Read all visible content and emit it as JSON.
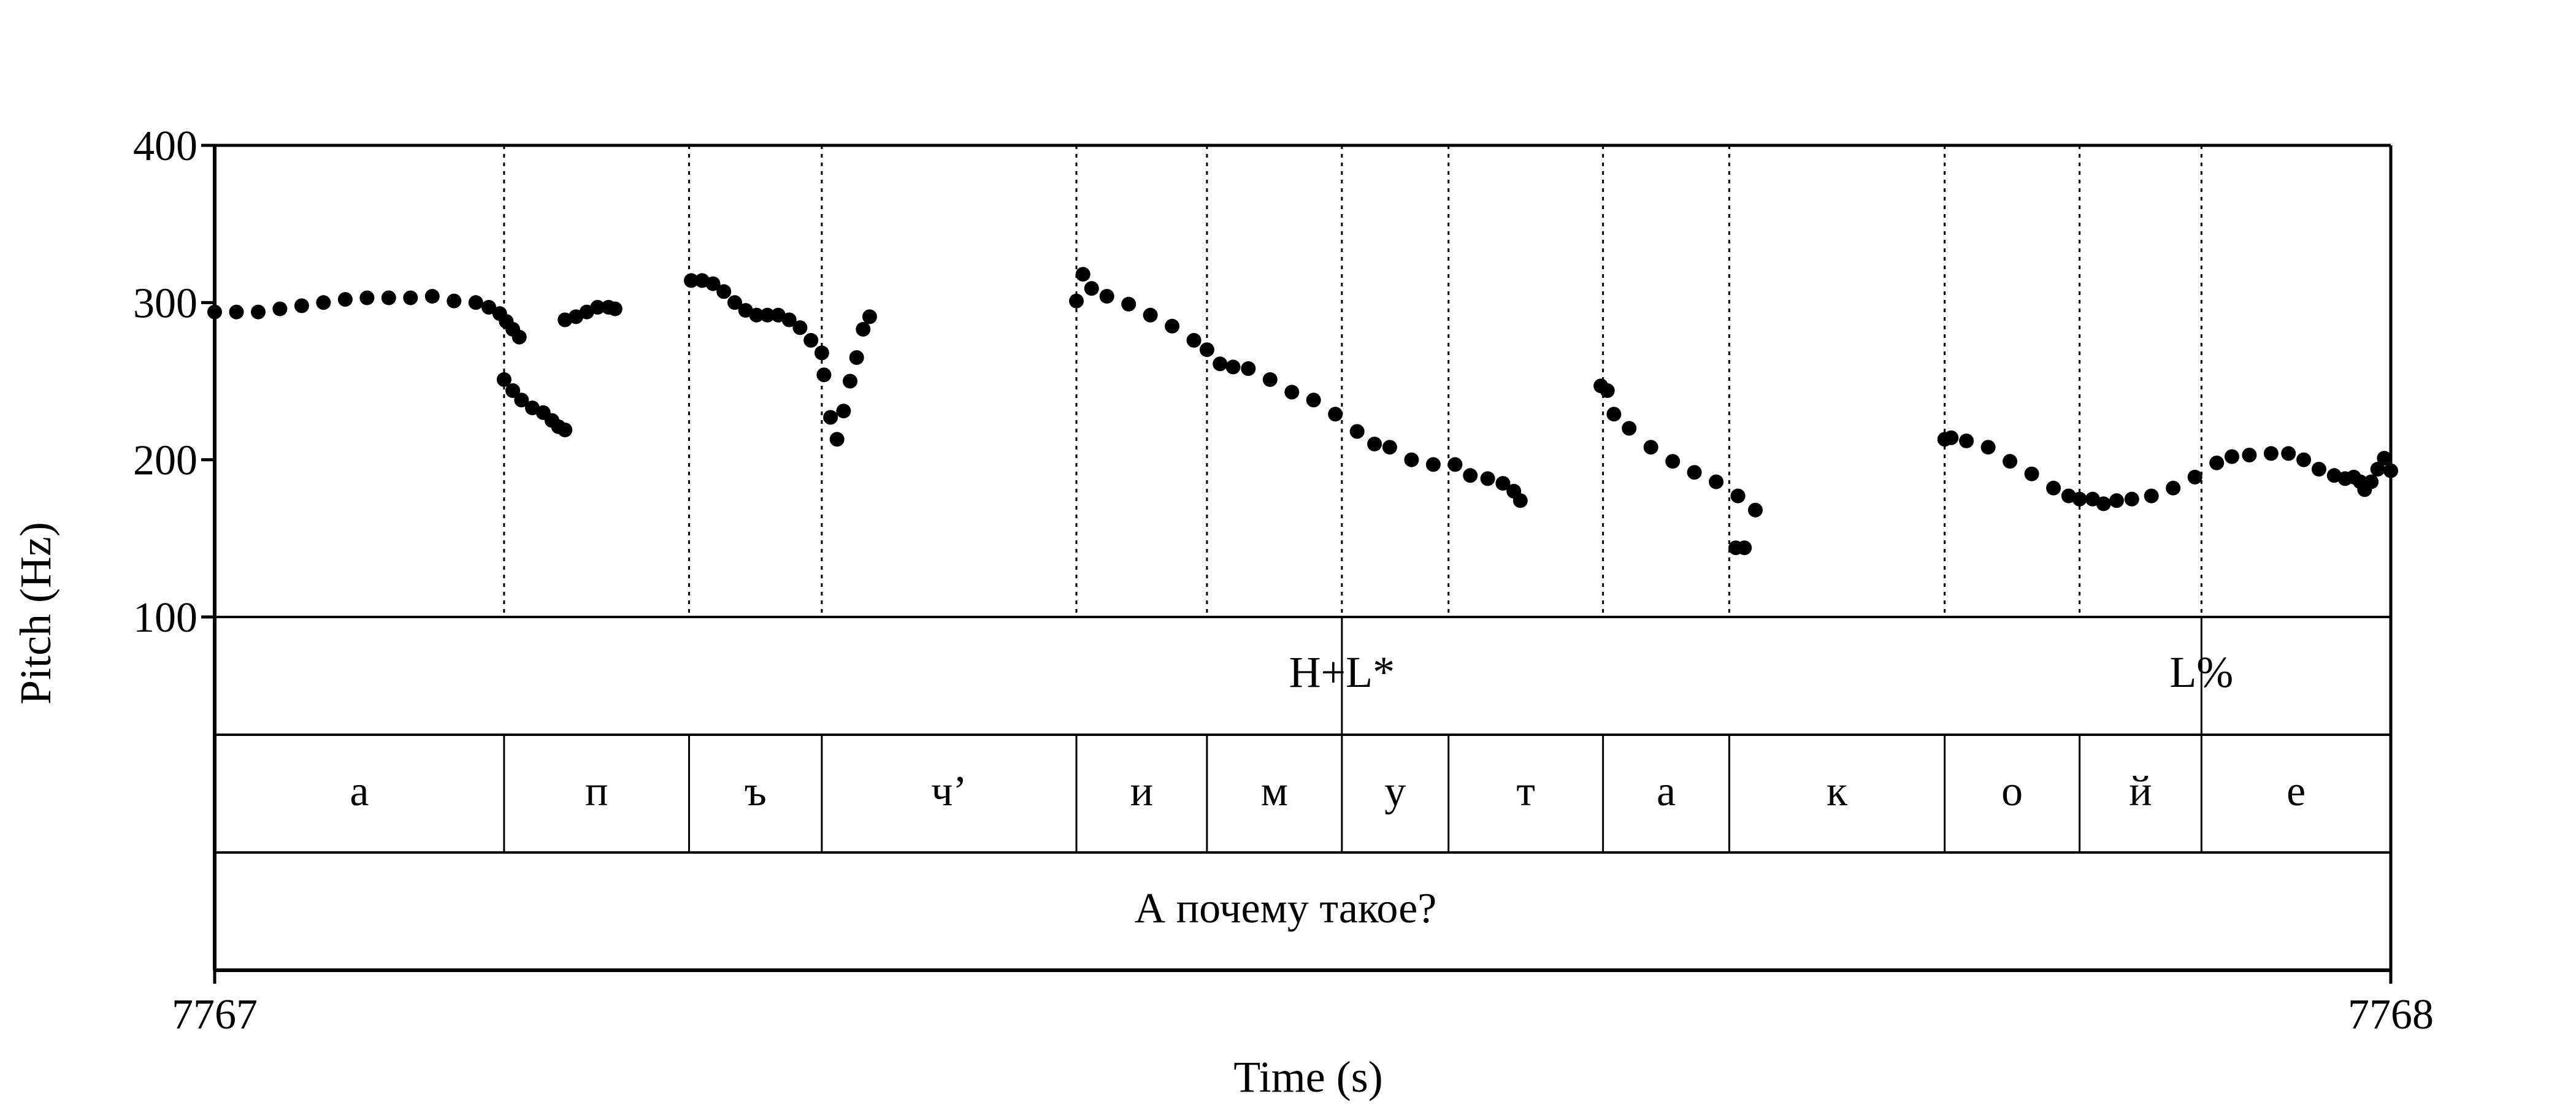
{
  "chart_data": {
    "type": "scatter",
    "title": "",
    "xlabel": "Time (s)",
    "ylabel": "Pitch (Hz)",
    "xlim": [
      0,
      1
    ],
    "ylim": [
      100,
      400
    ],
    "x_tick_labels": [
      "7767",
      "7768"
    ],
    "y_ticks": [
      100,
      200,
      300,
      400
    ],
    "y_tick_labels": [
      "100",
      "200",
      "300",
      "400"
    ],
    "grid": false,
    "marker_color": "#000000",
    "boundaries": [
      0.133,
      0.218,
      0.279,
      0.396,
      0.456,
      0.518,
      0.567,
      0.638,
      0.696,
      0.795,
      0.857,
      0.913
    ],
    "tone_tier": {
      "boundaries": [
        0.518,
        0.913
      ],
      "labels": [
        "H+L*",
        "L%"
      ]
    },
    "segment_tier": {
      "labels": [
        "а",
        "п",
        "ъ",
        "ч’",
        "и",
        "м",
        "у",
        "т",
        "а",
        "к",
        "о",
        "й",
        "е"
      ]
    },
    "sentence_tier": {
      "label": "А почему такое?"
    },
    "pitch_segments": [
      [
        [
          0.0,
          294
        ],
        [
          0.01,
          294
        ],
        [
          0.02,
          294
        ],
        [
          0.03,
          296
        ],
        [
          0.04,
          298
        ],
        [
          0.05,
          300
        ],
        [
          0.06,
          302
        ],
        [
          0.07,
          303
        ],
        [
          0.08,
          303
        ],
        [
          0.09,
          303
        ],
        [
          0.1,
          304
        ],
        [
          0.11,
          301
        ],
        [
          0.12,
          300
        ],
        [
          0.126,
          297
        ],
        [
          0.131,
          293
        ],
        [
          0.134,
          288
        ],
        [
          0.137,
          283
        ],
        [
          0.14,
          278
        ]
      ],
      [
        [
          0.133,
          251
        ],
        [
          0.137,
          244
        ],
        [
          0.141,
          238
        ],
        [
          0.146,
          233
        ],
        [
          0.151,
          230
        ],
        [
          0.155,
          225
        ],
        [
          0.158,
          221
        ],
        [
          0.161,
          219
        ]
      ],
      [
        [
          0.161,
          289
        ],
        [
          0.166,
          291
        ],
        [
          0.171,
          294
        ],
        [
          0.176,
          297
        ],
        [
          0.181,
          297
        ],
        [
          0.184,
          296
        ]
      ],
      [
        [
          0.219,
          314
        ],
        [
          0.224,
          314
        ],
        [
          0.229,
          312
        ],
        [
          0.234,
          307
        ],
        [
          0.239,
          300
        ],
        [
          0.244,
          295
        ],
        [
          0.249,
          292
        ],
        [
          0.254,
          292
        ],
        [
          0.259,
          292
        ],
        [
          0.264,
          289
        ],
        [
          0.269,
          284
        ],
        [
          0.274,
          276
        ],
        [
          0.279,
          268
        ]
      ],
      [
        [
          0.28,
          254
        ],
        [
          0.283,
          227
        ],
        [
          0.286,
          213
        ],
        [
          0.289,
          231
        ],
        [
          0.292,
          250
        ],
        [
          0.295,
          265
        ],
        [
          0.298,
          283
        ],
        [
          0.301,
          291
        ]
      ],
      [
        [
          0.396,
          301
        ],
        [
          0.399,
          318
        ],
        [
          0.403,
          309
        ],
        [
          0.41,
          304
        ],
        [
          0.42,
          299
        ],
        [
          0.43,
          292
        ],
        [
          0.44,
          285
        ],
        [
          0.45,
          276
        ],
        [
          0.456,
          270
        ],
        [
          0.462,
          261
        ],
        [
          0.468,
          259
        ],
        [
          0.475,
          258
        ],
        [
          0.485,
          251
        ],
        [
          0.495,
          243
        ],
        [
          0.505,
          238
        ],
        [
          0.515,
          229
        ],
        [
          0.525,
          218
        ],
        [
          0.533,
          210
        ],
        [
          0.54,
          208
        ],
        [
          0.55,
          200
        ],
        [
          0.56,
          197
        ],
        [
          0.57,
          197
        ],
        [
          0.577,
          190
        ],
        [
          0.585,
          188
        ],
        [
          0.592,
          185
        ],
        [
          0.597,
          180
        ],
        [
          0.6,
          174
        ]
      ],
      [
        [
          0.637,
          247
        ],
        [
          0.64,
          244
        ],
        [
          0.643,
          229
        ],
        [
          0.65,
          220
        ],
        [
          0.66,
          208
        ],
        [
          0.67,
          199
        ],
        [
          0.68,
          192
        ],
        [
          0.69,
          186
        ],
        [
          0.7,
          177
        ],
        [
          0.708,
          168
        ]
      ],
      [
        [
          0.699,
          144
        ],
        [
          0.703,
          144
        ]
      ],
      [
        [
          0.795,
          213
        ],
        [
          0.798,
          214
        ],
        [
          0.805,
          212
        ],
        [
          0.815,
          208
        ],
        [
          0.825,
          199
        ],
        [
          0.835,
          191
        ],
        [
          0.845,
          182
        ],
        [
          0.852,
          177
        ],
        [
          0.857,
          175
        ],
        [
          0.863,
          175
        ],
        [
          0.868,
          172
        ],
        [
          0.874,
          174
        ],
        [
          0.881,
          175
        ],
        [
          0.89,
          177
        ],
        [
          0.9,
          182
        ],
        [
          0.91,
          189
        ],
        [
          0.92,
          198
        ],
        [
          0.927,
          202
        ],
        [
          0.935,
          203
        ],
        [
          0.945,
          204
        ],
        [
          0.953,
          204
        ],
        [
          0.96,
          200
        ],
        [
          0.967,
          194
        ],
        [
          0.974,
          190
        ],
        [
          0.979,
          188
        ],
        [
          0.983,
          189
        ],
        [
          0.986,
          186
        ],
        [
          0.988,
          181
        ],
        [
          0.991,
          186
        ],
        [
          0.994,
          194
        ],
        [
          0.997,
          201
        ],
        [
          1.0,
          193
        ]
      ]
    ]
  }
}
